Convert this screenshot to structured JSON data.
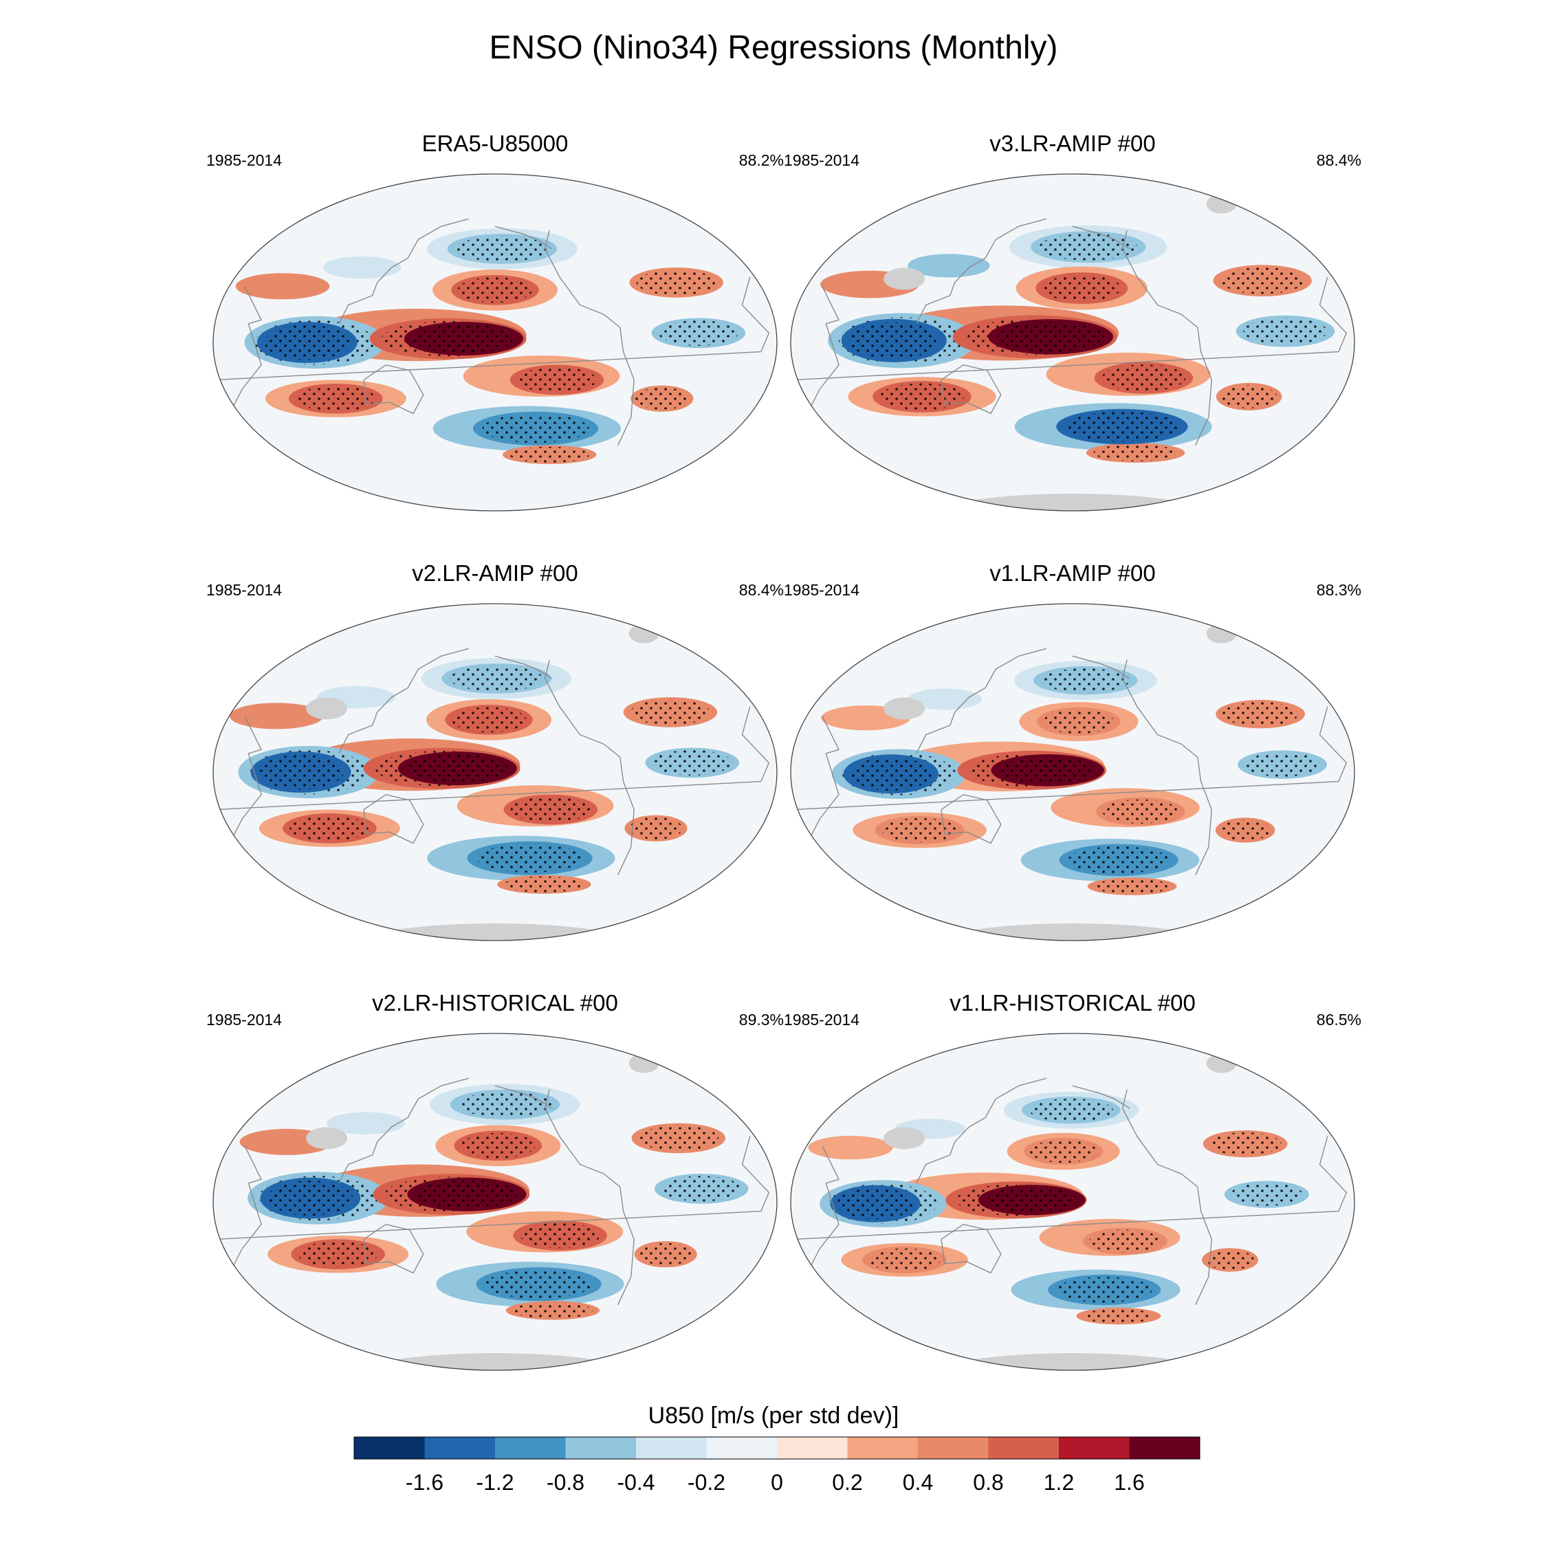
{
  "figure": {
    "title": "ENSO (Nino34) Regressions (Monthly)"
  },
  "panels": [
    {
      "title": "ERA5-U85000",
      "period": "1985-2014",
      "pattern_correlation": "88.2%",
      "land_mask_gray": false
    },
    {
      "title": "v3.LR-AMIP  #00",
      "period": "1985-2014",
      "pattern_correlation": "88.4%",
      "land_mask_gray": true
    },
    {
      "title": "v2.LR-AMIP  #00",
      "period": "1985-2014",
      "pattern_correlation": "88.4%",
      "land_mask_gray": true
    },
    {
      "title": "v1.LR-AMIP  #00",
      "period": "1985-2014",
      "pattern_correlation": "88.3%",
      "land_mask_gray": true
    },
    {
      "title": "v2.LR-HISTORICAL  #00",
      "period": "1985-2014",
      "pattern_correlation": "89.3%",
      "land_mask_gray": true
    },
    {
      "title": "v1.LR-HISTORICAL  #00",
      "period": "1985-2014",
      "pattern_correlation": "86.5%",
      "land_mask_gray": true
    }
  ],
  "colorbar": {
    "label": "U850 [m/s (per std dev)]",
    "ticks": [
      "-1.6",
      "-1.2",
      "-0.8",
      "-0.4",
      "-0.2",
      "0",
      "0.2",
      "0.4",
      "0.8",
      "1.2",
      "1.6"
    ],
    "colors": [
      "#08306b",
      "#2166ac",
      "#4393c3",
      "#92c5de",
      "#d1e5f0",
      "#eef3f8",
      "#fde5d8",
      "#f4a582",
      "#e88a6a",
      "#d6604d",
      "#b2182b",
      "#67001f"
    ]
  },
  "chart_data": {
    "type": "heatmap",
    "title": "ENSO (Nino34) Regressions (Monthly)",
    "variable": "U850",
    "units": "m/s (per std dev)",
    "projection": "Robinson (global, centered on Pacific)",
    "contour_levels": [
      -1.6,
      -1.2,
      -0.8,
      -0.4,
      -0.2,
      0,
      0.2,
      0.4,
      0.8,
      1.2,
      1.6
    ],
    "period": "1985-2014",
    "stippling": "statistically significant regions",
    "series": [
      {
        "name": "ERA5-U85000",
        "pattern_correlation": 88.2
      },
      {
        "name": "v3.LR-AMIP  #00",
        "pattern_correlation": 88.4
      },
      {
        "name": "v2.LR-AMIP  #00",
        "pattern_correlation": 88.4
      },
      {
        "name": "v1.LR-AMIP  #00",
        "pattern_correlation": 88.3
      },
      {
        "name": "v2.LR-HISTORICAL  #00",
        "pattern_correlation": 89.3
      },
      {
        "name": "v1.LR-HISTORICAL  #00",
        "pattern_correlation": 86.5
      }
    ],
    "features": [
      {
        "name": "central-pacific-westerly-anomaly",
        "lon": 180,
        "lat": 0,
        "value": 1.8
      },
      {
        "name": "indian-ocean-easterly-anomaly",
        "lon": 75,
        "lat": 0,
        "value": -1.4
      },
      {
        "name": "north-pacific-subtropical-westerly",
        "lon": 200,
        "lat": 28,
        "value": 0.8
      },
      {
        "name": "north-pacific-midlatitude-easterly",
        "lon": 200,
        "lat": 50,
        "value": -0.6
      },
      {
        "name": "south-pacific-subtropical-westerly",
        "lon": 235,
        "lat": -22,
        "value": 0.8
      },
      {
        "name": "south-pacific-midlatitude-easterly",
        "lon": 225,
        "lat": -48,
        "value": -1.2
      },
      {
        "name": "atlantic-equatorial-easterly",
        "lon": 330,
        "lat": 5,
        "value": -0.6
      },
      {
        "name": "south-indian-westerly",
        "lon": 90,
        "lat": -30,
        "value": 0.8
      },
      {
        "name": "north-atlantic-westerly",
        "lon": 320,
        "lat": 32,
        "value": 0.6
      },
      {
        "name": "southern-ocean-westerly",
        "lon": 210,
        "lat": -62,
        "value": 0.6
      }
    ]
  }
}
